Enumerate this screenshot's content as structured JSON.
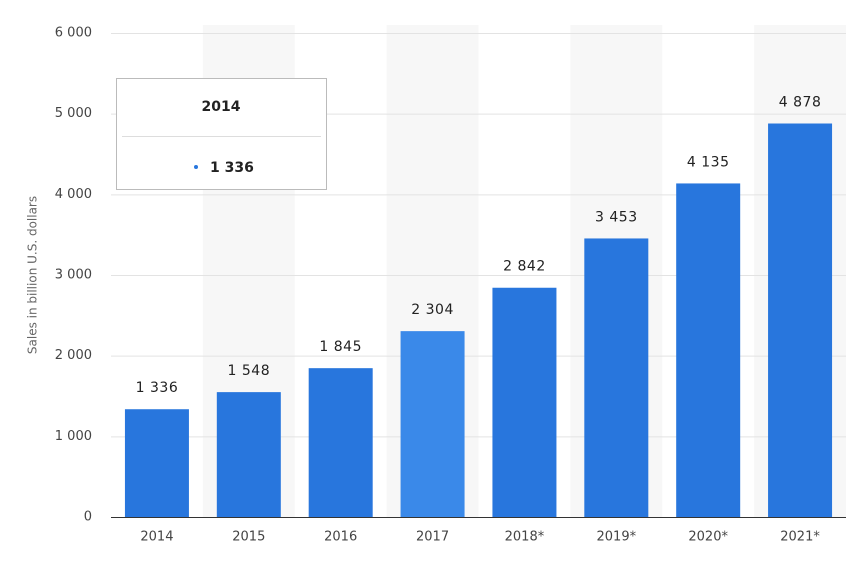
{
  "chart_data": {
    "type": "bar",
    "y_label": "Sales in billion U.S. dollars",
    "categories": [
      "2014",
      "2015",
      "2016",
      "2017",
      "2018*",
      "2019*",
      "2020*",
      "2021*"
    ],
    "values": [
      1336,
      1548,
      1845,
      2304,
      2842,
      3453,
      4135,
      4878
    ],
    "value_labels": [
      "1 336",
      "1 548",
      "1 845",
      "2 304",
      "2 842",
      "3 453",
      "4 135",
      "4 878"
    ],
    "colors": [
      "#2876dd",
      "#2876dd",
      "#2876dd",
      "#3a89e9",
      "#2876dd",
      "#2876dd",
      "#2876dd",
      "#2876dd"
    ],
    "ylim": [
      0,
      6000
    ],
    "yticks": [
      0,
      {
        "value": 1000,
        "label": "1 000"
      },
      {
        "value": 2000,
        "label": "2 000"
      },
      {
        "value": 3000,
        "label": "3 000"
      },
      {
        "value": 4000,
        "label": "4 000"
      },
      {
        "value": 5000,
        "label": "5 000"
      },
      {
        "value": 6000,
        "label": "6 000"
      }
    ],
    "grid": true,
    "tooltip_index": 0
  }
}
